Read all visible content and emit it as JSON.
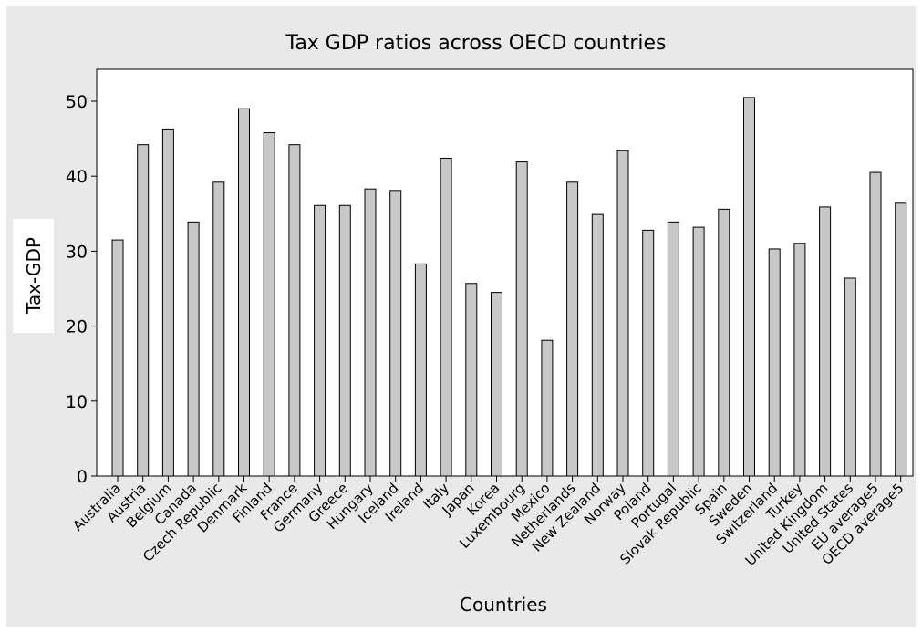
{
  "chart_data": {
    "type": "bar",
    "title": "Tax GDP ratios across OECD countries",
    "xlabel": "Countries",
    "ylabel": "Tax-GDP",
    "ylim": [
      0,
      52
    ],
    "yticks": [
      0,
      10,
      20,
      30,
      40,
      50
    ],
    "grid": false,
    "legend": "none",
    "bar_color": "#c8c8c8",
    "categories": [
      "Australia",
      "Austria",
      "Belgium",
      "Canada",
      "Czech Republic",
      "Denmark",
      "Finland",
      "France",
      "Germany",
      "Greece",
      "Hungary",
      "Iceland",
      "Ireland",
      "Italy",
      "Japan",
      "Korea",
      "Luxembourg",
      "Mexico",
      "Netherlands",
      "New Zealand",
      "Norway",
      "Poland",
      "Portugal",
      "Slovak Republic",
      "Spain",
      "Sweden",
      "Switzerland",
      "Turkey",
      "United Kingdom",
      "United States",
      "EU average5",
      "OECD average5"
    ],
    "values": [
      31.5,
      44.2,
      46.3,
      33.9,
      39.2,
      49.0,
      45.8,
      44.2,
      36.1,
      36.1,
      38.3,
      38.1,
      28.3,
      42.4,
      25.7,
      24.5,
      41.9,
      18.1,
      39.2,
      34.9,
      43.4,
      32.8,
      33.9,
      33.2,
      35.6,
      50.5,
      30.3,
      31.0,
      35.9,
      26.4,
      40.5,
      36.4
    ]
  }
}
